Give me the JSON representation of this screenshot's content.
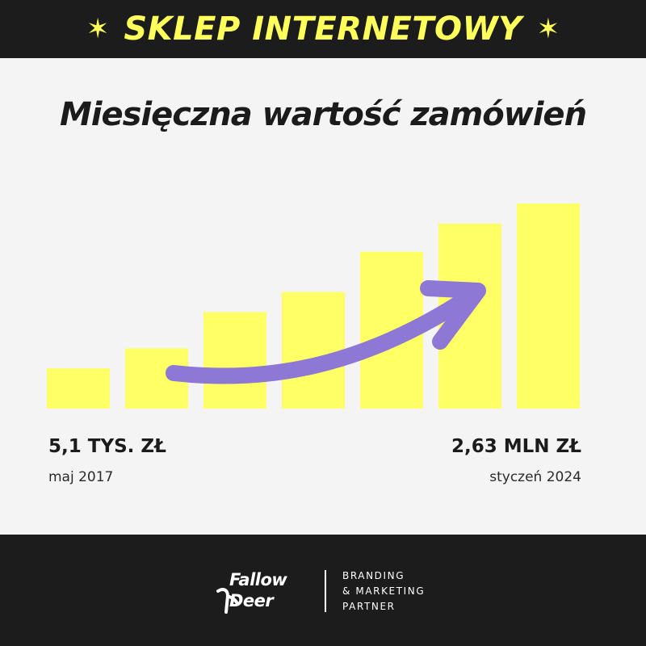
{
  "header": {
    "title": "SKLEP INTERNETOWY",
    "star_left": "✶",
    "star_right": "✶"
  },
  "colors": {
    "header_bg": "#1c1c1c",
    "header_text": "#ffff5c",
    "bar": "#ffff66",
    "arrow": "#8e78d6",
    "background": "#f4f4f4"
  },
  "chart_data": {
    "type": "bar",
    "title": "Miesięczna wartość zamówień",
    "series": [
      {
        "values": [
          1.0,
          1.5,
          2.4,
          2.9,
          3.9,
          4.6,
          5.1
        ]
      }
    ],
    "start": {
      "value_label": "5,1 TYS. ZŁ",
      "date_label": "maj 2017"
    },
    "end": {
      "value_label": "2,63 MLN ZŁ",
      "date_label": "styczeń 2024"
    },
    "annotation": "upward trend arrow",
    "axes_visible": false,
    "grid": false
  },
  "footer": {
    "logo_line1": "Fallow",
    "logo_line2": "Deer",
    "tagline": [
      "BRANDING",
      "& MARKETING",
      "PARTNER"
    ]
  }
}
